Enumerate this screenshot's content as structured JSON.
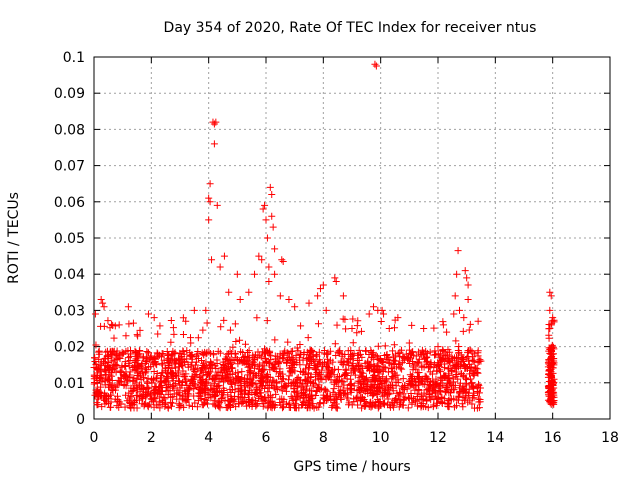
{
  "chart_data": {
    "type": "scatter",
    "title": "Day 354 of 2020, Rate Of TEC Index for receiver ntus",
    "xlabel": "GPS time / hours",
    "ylabel": "ROTI / TECUs",
    "xlim": [
      0,
      18
    ],
    "ylim": [
      0,
      0.1
    ],
    "xticks": [
      0,
      2,
      4,
      6,
      8,
      10,
      12,
      14,
      16,
      18
    ],
    "yticks": [
      0,
      0.01,
      0.02,
      0.03,
      0.04,
      0.05,
      0.06,
      0.07,
      0.08,
      0.09,
      0.1
    ],
    "xtick_labels": [
      "0",
      "2",
      "4",
      "6",
      "8",
      "10",
      "12",
      "14",
      "16",
      "18"
    ],
    "ytick_labels": [
      "0",
      "0.01",
      "0.02",
      "0.03",
      "0.04",
      "0.05",
      "0.06",
      "0.07",
      "0.08",
      "0.09",
      "0.1"
    ],
    "grid": true,
    "marker": "+",
    "marker_color": "#ff0000",
    "series": [
      {
        "name": "ROTI",
        "bands": [
          {
            "x_start": 0.0,
            "x_end": 13.5,
            "base_min": 0.003,
            "base_max": 0.019,
            "spread_max": 0.028,
            "count": 2200
          },
          {
            "x_start": 15.85,
            "x_end": 16.05,
            "base_min": 0.004,
            "base_max": 0.02,
            "spread_max": 0.028,
            "count": 140
          }
        ],
        "points": [
          {
            "x": 0.25,
            "y": 0.033
          },
          {
            "x": 0.3,
            "y": 0.032
          },
          {
            "x": 0.35,
            "y": 0.031
          },
          {
            "x": 0.05,
            "y": 0.029
          },
          {
            "x": 1.2,
            "y": 0.031
          },
          {
            "x": 1.9,
            "y": 0.029
          },
          {
            "x": 2.1,
            "y": 0.028
          },
          {
            "x": 3.2,
            "y": 0.027
          },
          {
            "x": 3.5,
            "y": 0.03
          },
          {
            "x": 3.9,
            "y": 0.03
          },
          {
            "x": 4.05,
            "y": 0.065
          },
          {
            "x": 4.0,
            "y": 0.061
          },
          {
            "x": 4.05,
            "y": 0.06
          },
          {
            "x": 4.0,
            "y": 0.055
          },
          {
            "x": 4.1,
            "y": 0.044
          },
          {
            "x": 4.15,
            "y": 0.082
          },
          {
            "x": 4.2,
            "y": 0.0815
          },
          {
            "x": 4.25,
            "y": 0.082
          },
          {
            "x": 4.2,
            "y": 0.076
          },
          {
            "x": 4.3,
            "y": 0.059
          },
          {
            "x": 4.4,
            "y": 0.042
          },
          {
            "x": 4.55,
            "y": 0.045
          },
          {
            "x": 4.7,
            "y": 0.035
          },
          {
            "x": 5.0,
            "y": 0.04
          },
          {
            "x": 5.1,
            "y": 0.033
          },
          {
            "x": 5.4,
            "y": 0.035
          },
          {
            "x": 5.6,
            "y": 0.04
          },
          {
            "x": 5.75,
            "y": 0.045
          },
          {
            "x": 5.85,
            "y": 0.044
          },
          {
            "x": 5.9,
            "y": 0.058
          },
          {
            "x": 5.95,
            "y": 0.059
          },
          {
            "x": 6.0,
            "y": 0.055
          },
          {
            "x": 6.05,
            "y": 0.05
          },
          {
            "x": 6.1,
            "y": 0.038
          },
          {
            "x": 6.15,
            "y": 0.064
          },
          {
            "x": 6.2,
            "y": 0.062
          },
          {
            "x": 6.2,
            "y": 0.056
          },
          {
            "x": 6.25,
            "y": 0.053
          },
          {
            "x": 6.3,
            "y": 0.047
          },
          {
            "x": 6.1,
            "y": 0.042
          },
          {
            "x": 6.3,
            "y": 0.04
          },
          {
            "x": 6.55,
            "y": 0.044
          },
          {
            "x": 6.6,
            "y": 0.0435
          },
          {
            "x": 6.5,
            "y": 0.034
          },
          {
            "x": 6.8,
            "y": 0.033
          },
          {
            "x": 7.0,
            "y": 0.031
          },
          {
            "x": 7.5,
            "y": 0.032
          },
          {
            "x": 7.8,
            "y": 0.034
          },
          {
            "x": 7.9,
            "y": 0.036
          },
          {
            "x": 8.0,
            "y": 0.037
          },
          {
            "x": 8.1,
            "y": 0.03
          },
          {
            "x": 8.4,
            "y": 0.039
          },
          {
            "x": 8.45,
            "y": 0.038
          },
          {
            "x": 8.7,
            "y": 0.034
          },
          {
            "x": 9.0,
            "y": 0.025
          },
          {
            "x": 9.6,
            "y": 0.029
          },
          {
            "x": 9.8,
            "y": 0.098
          },
          {
            "x": 9.85,
            "y": 0.0975
          },
          {
            "x": 9.75,
            "y": 0.031
          },
          {
            "x": 9.9,
            "y": 0.03
          },
          {
            "x": 10.05,
            "y": 0.03
          },
          {
            "x": 10.1,
            "y": 0.029
          },
          {
            "x": 10.3,
            "y": 0.025
          },
          {
            "x": 10.6,
            "y": 0.028
          },
          {
            "x": 11.0,
            "y": 0.021
          },
          {
            "x": 11.5,
            "y": 0.025
          },
          {
            "x": 12.0,
            "y": 0.02
          },
          {
            "x": 12.3,
            "y": 0.024
          },
          {
            "x": 12.55,
            "y": 0.029
          },
          {
            "x": 12.6,
            "y": 0.034
          },
          {
            "x": 12.7,
            "y": 0.0465
          },
          {
            "x": 12.65,
            "y": 0.04
          },
          {
            "x": 12.75,
            "y": 0.03
          },
          {
            "x": 12.95,
            "y": 0.041
          },
          {
            "x": 13.0,
            "y": 0.039
          },
          {
            "x": 13.05,
            "y": 0.037
          },
          {
            "x": 13.05,
            "y": 0.033
          },
          {
            "x": 12.9,
            "y": 0.028
          },
          {
            "x": 13.4,
            "y": 0.027
          },
          {
            "x": 15.9,
            "y": 0.035
          },
          {
            "x": 15.95,
            "y": 0.034
          },
          {
            "x": 15.9,
            "y": 0.03
          },
          {
            "x": 16.0,
            "y": 0.028
          },
          {
            "x": 15.95,
            "y": 0.026
          },
          {
            "x": 15.9,
            "y": 0.025
          }
        ]
      }
    ]
  }
}
